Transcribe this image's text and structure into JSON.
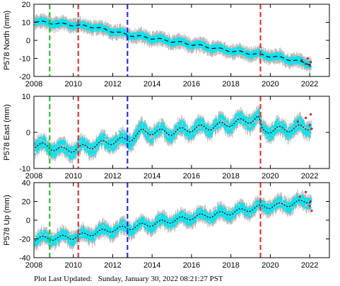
{
  "footer": {
    "label": "Plot Last Updated:",
    "timestamp": "Sunday, January 30, 2022 08:21:27 PST"
  },
  "colors": {
    "errorbar": "#b0b0b0",
    "data": "#00e5f0",
    "model": "#000000",
    "outlier": "#d81e1e",
    "vline_green": "#22bb22",
    "vline_red": "#ee2222",
    "vline_blue": "#1a1aee"
  },
  "chart_data": [
    {
      "type": "scatter",
      "ylabel": "P578 North (mm)",
      "xlim": [
        2008,
        2023
      ],
      "ylim": [
        -20,
        20
      ],
      "xticks": [
        2008,
        2010,
        2012,
        2014,
        2016,
        2018,
        2020,
        2022
      ],
      "yticks": [
        -20,
        -10,
        0,
        10,
        20
      ],
      "trend": [
        [
          2008.0,
          10.5
        ],
        [
          2009.0,
          9.5
        ],
        [
          2011.0,
          7.5
        ],
        [
          2012.8,
          3.0
        ],
        [
          2014.0,
          1.2
        ],
        [
          2016.0,
          -2.2
        ],
        [
          2018.0,
          -5.8
        ],
        [
          2019.5,
          -8.0
        ],
        [
          2020.5,
          -9.5
        ],
        [
          2022.0,
          -13.0
        ]
      ],
      "noise": 3.5,
      "annual_amplitude": 0.8,
      "vlines": [
        {
          "x": 2008.8,
          "color": "green"
        },
        {
          "x": 2010.25,
          "color": "red"
        },
        {
          "x": 2012.75,
          "color": "blue"
        },
        {
          "x": 2019.5,
          "color": "red"
        }
      ],
      "outliers": [
        [
          2021.6,
          -11
        ],
        [
          2021.8,
          -13
        ],
        [
          2021.9,
          -10
        ],
        [
          2022.0,
          -14
        ],
        [
          2022.05,
          -12
        ]
      ]
    },
    {
      "type": "scatter",
      "ylabel": "P578 East (mm)",
      "xlim": [
        2008,
        2023
      ],
      "ylim": [
        -10,
        10
      ],
      "xticks": [
        2008,
        2010,
        2012,
        2014,
        2016,
        2018,
        2020,
        2022
      ],
      "yticks": [
        -10,
        0,
        10
      ],
      "trend": [
        [
          2008.0,
          -3.5
        ],
        [
          2008.8,
          -4.0
        ],
        [
          2009.5,
          -5.0
        ],
        [
          2010.5,
          -4.2
        ],
        [
          2012.0,
          -2.5
        ],
        [
          2012.8,
          -2.0
        ],
        [
          2013.5,
          0.2
        ],
        [
          2015.0,
          0.0
        ],
        [
          2016.0,
          1.0
        ],
        [
          2017.0,
          1.5
        ],
        [
          2018.0,
          2.5
        ],
        [
          2019.4,
          3.8
        ],
        [
          2019.6,
          0.5
        ],
        [
          2021.0,
          1.0
        ],
        [
          2022.0,
          1.5
        ]
      ],
      "noise": 3.2,
      "annual_amplitude": 1.2,
      "vlines": [
        {
          "x": 2008.8,
          "color": "green"
        },
        {
          "x": 2010.25,
          "color": "red"
        },
        {
          "x": 2012.75,
          "color": "blue"
        },
        {
          "x": 2019.5,
          "color": "red"
        }
      ],
      "outliers": [
        [
          2021.4,
          3
        ],
        [
          2021.8,
          4
        ],
        [
          2022.0,
          2
        ],
        [
          2022.05,
          5
        ],
        [
          2022.1,
          1
        ]
      ]
    },
    {
      "type": "scatter",
      "ylabel": "P578 Up (mm)",
      "xlim": [
        2008,
        2023
      ],
      "ylim": [
        -40,
        40
      ],
      "xticks": [
        2008,
        2010,
        2012,
        2014,
        2016,
        2018,
        2020,
        2022
      ],
      "yticks": [
        -40,
        -20,
        0,
        20,
        40
      ],
      "trend": [
        [
          2008.0,
          -20.0
        ],
        [
          2010.0,
          -18.0
        ],
        [
          2012.0,
          -10.0
        ],
        [
          2012.8,
          -8.0
        ],
        [
          2014.0,
          -4.0
        ],
        [
          2016.0,
          3.0
        ],
        [
          2018.0,
          8.0
        ],
        [
          2019.5,
          14.0
        ],
        [
          2021.0,
          17.0
        ],
        [
          2022.0,
          21.0
        ]
      ],
      "noise": 10,
      "annual_amplitude": 3.5,
      "vlines": [
        {
          "x": 2008.8,
          "color": "green"
        },
        {
          "x": 2010.25,
          "color": "red"
        },
        {
          "x": 2012.75,
          "color": "blue"
        },
        {
          "x": 2019.5,
          "color": "red"
        }
      ],
      "outliers": [
        [
          2021.5,
          25
        ],
        [
          2021.8,
          30
        ],
        [
          2022.0,
          15
        ],
        [
          2022.05,
          20
        ],
        [
          2022.1,
          10
        ]
      ]
    }
  ]
}
